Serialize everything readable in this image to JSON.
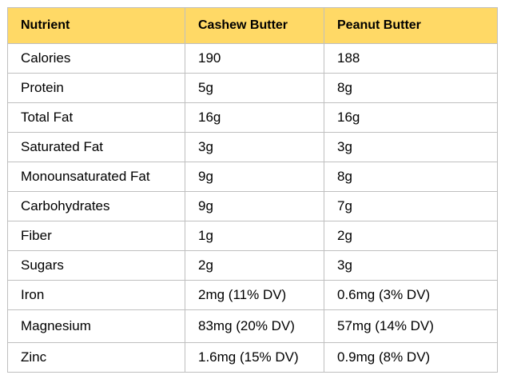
{
  "table": {
    "header_bg": "#ffd966",
    "border_color": "#bfbfbf",
    "headers": [
      "Nutrient",
      "Cashew Butter",
      "Peanut Butter"
    ],
    "rows": [
      [
        "Calories",
        "190",
        "188"
      ],
      [
        "Protein",
        "5g",
        "8g"
      ],
      [
        "Total Fat",
        "16g",
        "16g"
      ],
      [
        "Saturated Fat",
        "3g",
        "3g"
      ],
      [
        "Monounsaturated Fat",
        "9g",
        "8g"
      ],
      [
        "Carbohydrates",
        "9g",
        "7g"
      ],
      [
        "Fiber",
        "1g",
        "2g"
      ],
      [
        "Sugars",
        "2g",
        "3g"
      ],
      [
        "Iron",
        "2mg (11% DV)",
        "0.6mg (3% DV)"
      ],
      [
        "Magnesium",
        "83mg (20% DV)",
        "57mg (14% DV)"
      ],
      [
        "Zinc",
        "1.6mg (15% DV)",
        "0.9mg (8% DV)"
      ]
    ]
  }
}
